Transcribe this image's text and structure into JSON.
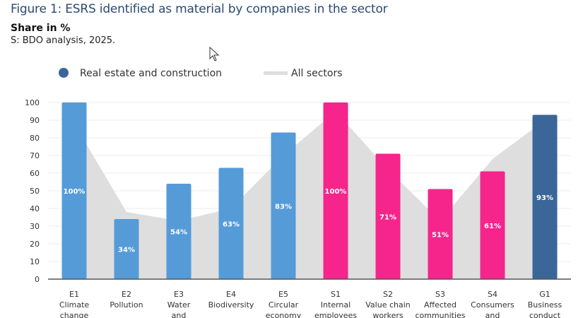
{
  "chart_data": {
    "type": "bar",
    "title": "Figure 1: ESRS identified as material by companies in the sector",
    "subtitle": "Share in %",
    "source": "S: BDO analysis, 2025.",
    "ylim": [
      0,
      100
    ],
    "yticks": [
      0,
      10,
      20,
      30,
      40,
      50,
      60,
      70,
      80,
      90,
      100
    ],
    "grid": true,
    "legend": {
      "position": "top",
      "entries": [
        "Real estate and construction",
        "All sectors"
      ]
    },
    "categories": [
      [
        "E1",
        "Climate",
        "change"
      ],
      [
        "E2",
        "Pollution"
      ],
      [
        "E3",
        "Water",
        "and"
      ],
      [
        "E4",
        "Biodiversity"
      ],
      [
        "E5",
        "Circular",
        "economy"
      ],
      [
        "S1",
        "Internal",
        "employees"
      ],
      [
        "S2",
        "Value chain",
        "workers"
      ],
      [
        "S3",
        "Affected",
        "communities"
      ],
      [
        "S4",
        "Consumers",
        "and"
      ],
      [
        "G1",
        "Business",
        "conduct"
      ]
    ],
    "series": [
      {
        "name": "Real estate and construction",
        "type": "bar",
        "values": [
          100,
          34,
          54,
          63,
          83,
          100,
          71,
          51,
          61,
          93
        ],
        "labels": [
          "100%",
          "34%",
          "54%",
          "63%",
          "83%",
          "100%",
          "71%",
          "51%",
          "61%",
          "93%"
        ]
      },
      {
        "name": "All sectors",
        "type": "area",
        "values": [
          88,
          38,
          33,
          40,
          70,
          95,
          62,
          33,
          68,
          90
        ]
      }
    ],
    "bar_colors": [
      "#559bd8",
      "#559bd8",
      "#559bd8",
      "#559bd8",
      "#559bd8",
      "#f5258c",
      "#f5258c",
      "#f5258c",
      "#f5258c",
      "#3b6698"
    ],
    "legend_color": "#3b6698",
    "area_color": "#dedede"
  }
}
